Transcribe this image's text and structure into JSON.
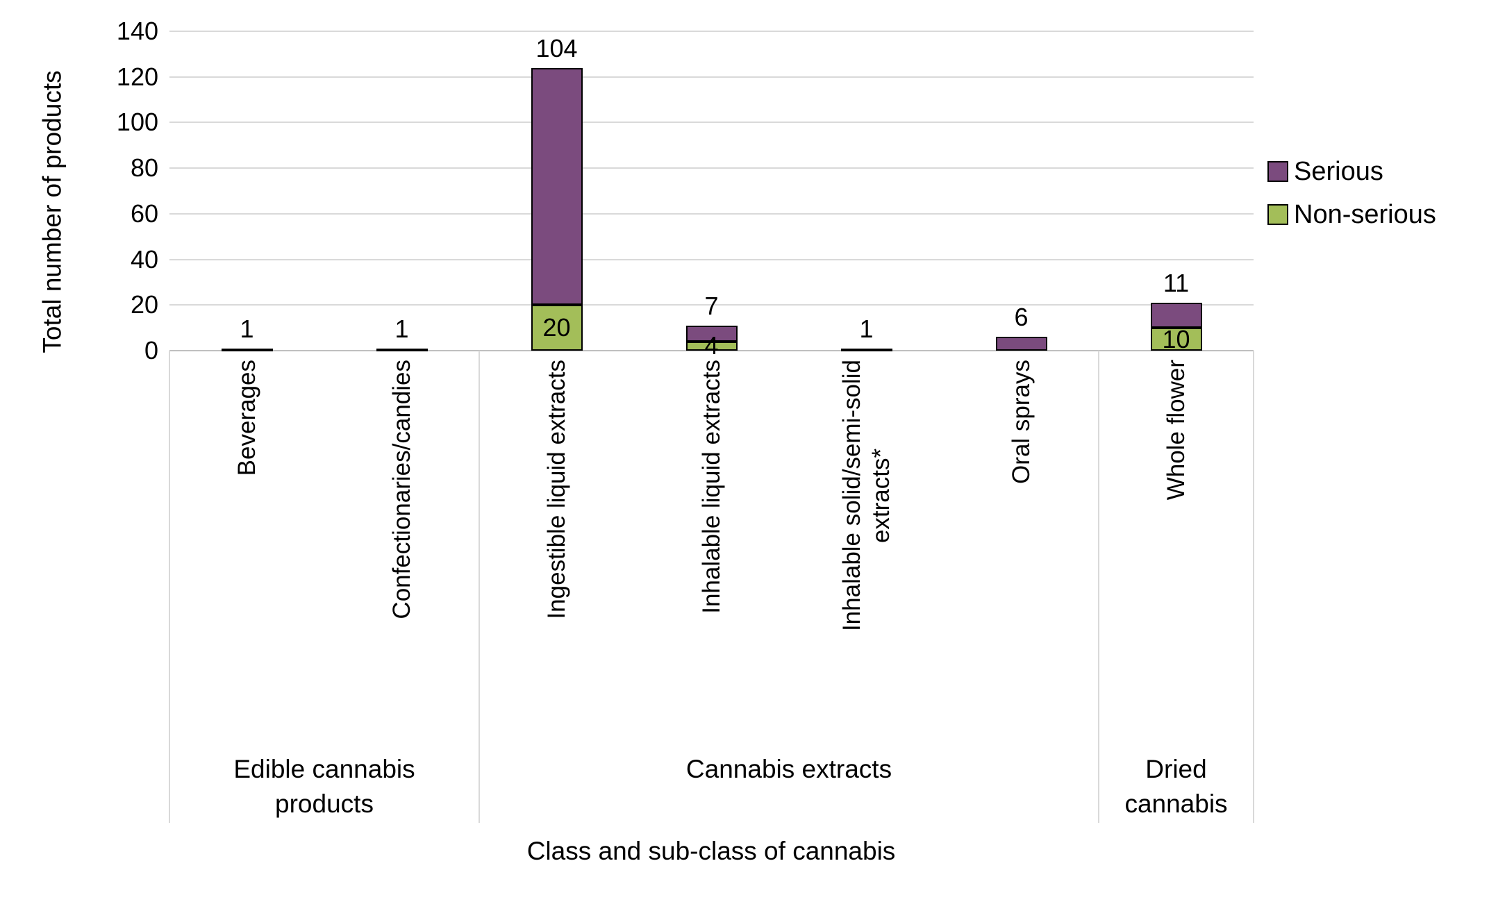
{
  "chart_data": {
    "type": "bar",
    "stacked": true,
    "title": "",
    "xlabel": "Class and sub-class of cannabis",
    "ylabel": "Total number of products",
    "ylim": [
      0,
      140
    ],
    "ytick_step": 20,
    "grid": true,
    "legend_position": "right",
    "gridline_color": "#d9d9d9",
    "bar_border_color": "#000000",
    "categories": [
      "Beverages",
      "Confectionaries/candies",
      "Ingestible liquid extracts",
      "Inhalable liquid extracts",
      "Inhalable solid/semi-solid\nextracts*",
      "Oral sprays",
      "Whole flower"
    ],
    "groups": [
      {
        "label": "Edible cannabis\nproducts",
        "count": 2
      },
      {
        "label": "Cannabis extracts",
        "count": 4
      },
      {
        "label": "Dried\ncannabis",
        "count": 1
      }
    ],
    "series": [
      {
        "name": "Serious",
        "color": "#7b4b7e",
        "values": [
          1,
          1,
          104,
          7,
          1,
          6,
          11
        ]
      },
      {
        "name": "Non-serious",
        "color": "#a3be59",
        "values": [
          0,
          0,
          20,
          4,
          0,
          0,
          10
        ]
      }
    ]
  }
}
